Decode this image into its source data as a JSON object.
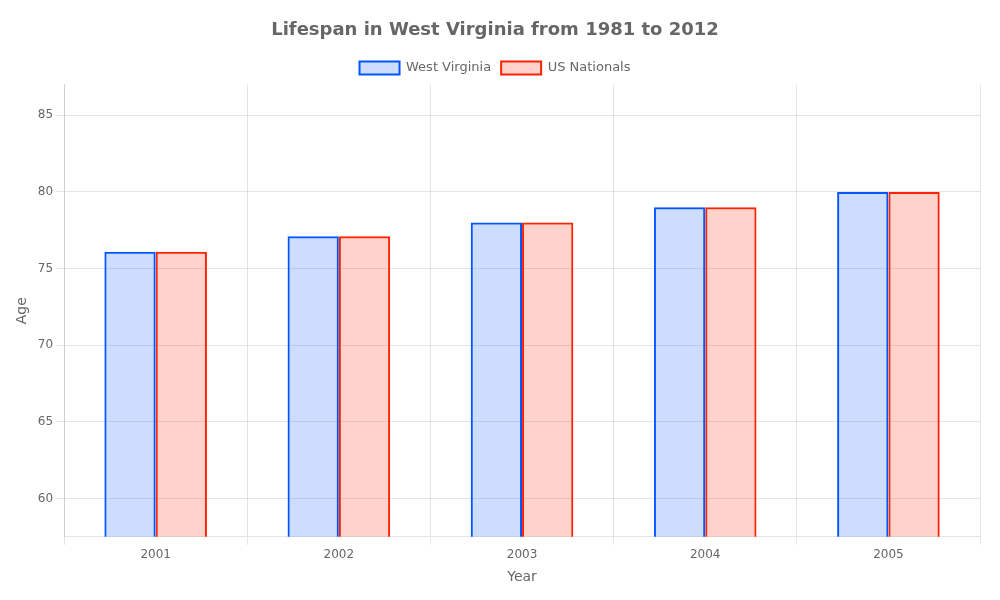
{
  "chart_data": {
    "type": "bar",
    "title": "Lifespan in West Virginia from 1981 to 2012",
    "x_label": "Year",
    "y_label": "Age",
    "categories": [
      "2001",
      "2002",
      "2003",
      "2004",
      "2005"
    ],
    "series": [
      {
        "name": "West Virginia",
        "color": "#0055ff",
        "values": [
          76.1,
          77.1,
          78.0,
          79.0,
          80.0
        ]
      },
      {
        "name": "US Nationals",
        "color": "#ff2200",
        "values": [
          76.1,
          77.1,
          78.0,
          79.0,
          80.0
        ]
      }
    ],
    "ylim": [
      57.5,
      87
    ],
    "yticks": [
      60,
      65,
      70,
      75,
      80,
      85
    ],
    "grid": true,
    "legend": "top"
  }
}
